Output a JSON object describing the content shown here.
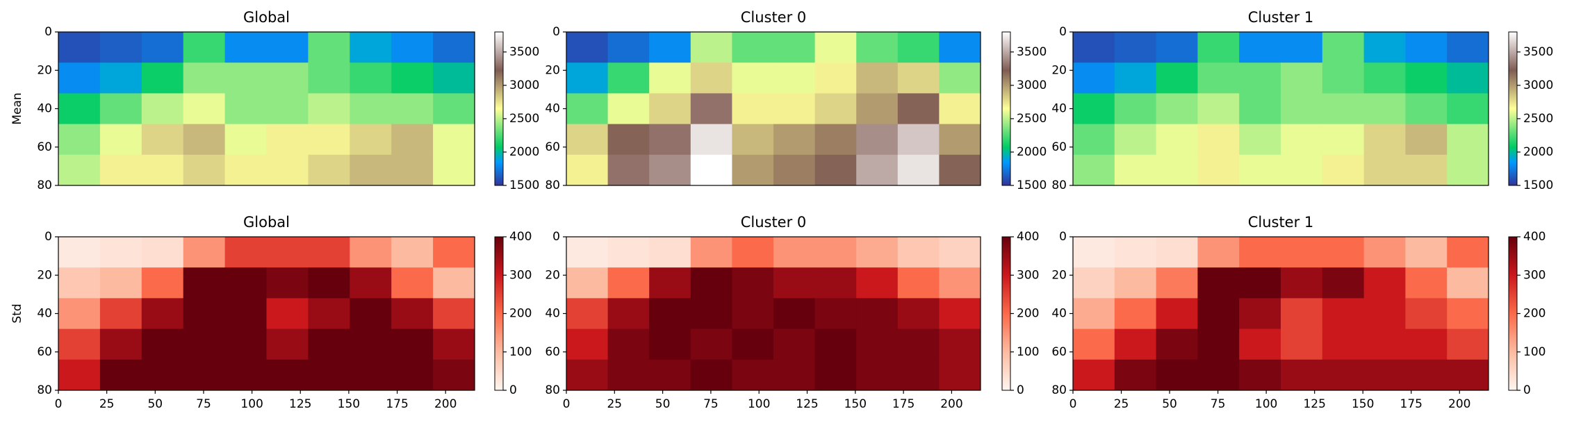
{
  "chart_data": [
    {
      "type": "heatmap",
      "title": "Global",
      "ylabel": "Mean",
      "colormap": "terrain",
      "xlim": [
        0,
        215
      ],
      "ylim": [
        80,
        0
      ],
      "yticks": [
        0,
        20,
        40,
        60,
        80
      ],
      "clim": [
        1500,
        3800
      ],
      "cticks": [
        1500,
        2000,
        2500,
        3000,
        3500
      ],
      "values": [
        [
          1600,
          1650,
          1700,
          2200,
          1800,
          1800,
          2300,
          1900,
          1800,
          1700
        ],
        [
          1800,
          1900,
          2100,
          2400,
          2400,
          2400,
          2300,
          2200,
          2100,
          2000
        ],
        [
          2100,
          2300,
          2500,
          2600,
          2400,
          2400,
          2500,
          2400,
          2400,
          2300
        ],
        [
          2400,
          2600,
          2800,
          2900,
          2600,
          2700,
          2700,
          2800,
          2900,
          2600
        ],
        [
          2500,
          2700,
          2700,
          2800,
          2700,
          2700,
          2800,
          2900,
          2900,
          2600
        ]
      ]
    },
    {
      "type": "heatmap",
      "title": "Cluster 0",
      "colormap": "terrain",
      "xlim": [
        0,
        215
      ],
      "ylim": [
        80,
        0
      ],
      "yticks": [
        0,
        20,
        40,
        60,
        80
      ],
      "clim": [
        1500,
        3800
      ],
      "cticks": [
        1500,
        2000,
        2500,
        3000,
        3500
      ],
      "values": [
        [
          1600,
          1700,
          1800,
          2500,
          2300,
          2300,
          2600,
          2300,
          2200,
          1800
        ],
        [
          1900,
          2200,
          2600,
          2800,
          2600,
          2600,
          2700,
          2900,
          2800,
          2400
        ],
        [
          2300,
          2600,
          2800,
          3300,
          2700,
          2700,
          2800,
          3000,
          3200,
          2700
        ],
        [
          2800,
          3200,
          3300,
          3700,
          2900,
          3000,
          3100,
          3400,
          3600,
          3000
        ],
        [
          2700,
          3300,
          3400,
          3800,
          3000,
          3100,
          3200,
          3500,
          3700,
          3200
        ]
      ]
    },
    {
      "type": "heatmap",
      "title": "Cluster 1",
      "colormap": "terrain",
      "xlim": [
        0,
        215
      ],
      "ylim": [
        80,
        0
      ],
      "yticks": [
        0,
        20,
        40,
        60,
        80
      ],
      "clim": [
        1500,
        3800
      ],
      "cticks": [
        1500,
        2000,
        2500,
        3000,
        3500
      ],
      "values": [
        [
          1600,
          1650,
          1700,
          2200,
          1800,
          1800,
          2300,
          1900,
          1800,
          1700
        ],
        [
          1800,
          1900,
          2100,
          2300,
          2300,
          2400,
          2300,
          2200,
          2100,
          2000
        ],
        [
          2100,
          2300,
          2400,
          2500,
          2300,
          2400,
          2400,
          2400,
          2300,
          2200
        ],
        [
          2300,
          2500,
          2600,
          2700,
          2500,
          2600,
          2600,
          2800,
          2900,
          2500
        ],
        [
          2400,
          2600,
          2600,
          2700,
          2600,
          2600,
          2700,
          2800,
          2800,
          2500
        ]
      ]
    },
    {
      "type": "heatmap",
      "title": "Global",
      "ylabel": "Std",
      "colormap": "Reds",
      "xlim": [
        0,
        215
      ],
      "ylim": [
        80,
        0
      ],
      "xticks": [
        0,
        25,
        50,
        75,
        100,
        125,
        150,
        175,
        200
      ],
      "yticks": [
        0,
        20,
        40,
        60,
        80
      ],
      "clim": [
        0,
        400
      ],
      "cticks": [
        0,
        100,
        200,
        300,
        400
      ],
      "values": [
        [
          20,
          30,
          40,
          150,
          250,
          250,
          250,
          150,
          100,
          200
        ],
        [
          80,
          100,
          200,
          400,
          400,
          380,
          400,
          350,
          200,
          100
        ],
        [
          150,
          250,
          350,
          400,
          400,
          300,
          350,
          400,
          350,
          250
        ],
        [
          250,
          350,
          400,
          400,
          400,
          350,
          400,
          400,
          400,
          350
        ],
        [
          300,
          400,
          400,
          400,
          400,
          400,
          400,
          400,
          400,
          380
        ]
      ]
    },
    {
      "type": "heatmap",
      "title": "Cluster 0",
      "colormap": "Reds",
      "xlim": [
        0,
        215
      ],
      "ylim": [
        80,
        0
      ],
      "xticks": [
        0,
        25,
        50,
        75,
        100,
        125,
        150,
        175,
        200
      ],
      "yticks": [
        0,
        20,
        40,
        60,
        80
      ],
      "clim": [
        0,
        400
      ],
      "cticks": [
        0,
        100,
        200,
        300,
        400
      ],
      "values": [
        [
          20,
          30,
          40,
          150,
          200,
          150,
          150,
          120,
          80,
          60
        ],
        [
          100,
          200,
          350,
          400,
          380,
          350,
          350,
          300,
          200,
          150
        ],
        [
          250,
          350,
          400,
          400,
          380,
          400,
          380,
          380,
          350,
          300
        ],
        [
          300,
          380,
          400,
          380,
          400,
          380,
          400,
          380,
          380,
          350
        ],
        [
          350,
          380,
          380,
          400,
          380,
          380,
          400,
          380,
          380,
          350
        ]
      ]
    },
    {
      "type": "heatmap",
      "title": "Cluster 1",
      "colormap": "Reds",
      "xlim": [
        0,
        215
      ],
      "ylim": [
        80,
        0
      ],
      "xticks": [
        0,
        25,
        50,
        75,
        100,
        125,
        150,
        175,
        200
      ],
      "yticks": [
        0,
        20,
        40,
        60,
        80
      ],
      "clim": [
        0,
        400
      ],
      "cticks": [
        0,
        100,
        200,
        300,
        400
      ],
      "values": [
        [
          20,
          30,
          40,
          150,
          200,
          200,
          200,
          150,
          100,
          200
        ],
        [
          60,
          100,
          180,
          400,
          400,
          350,
          380,
          300,
          200,
          100
        ],
        [
          120,
          200,
          300,
          400,
          350,
          250,
          300,
          300,
          250,
          200
        ],
        [
          200,
          300,
          380,
          400,
          300,
          250,
          300,
          300,
          300,
          250
        ],
        [
          300,
          380,
          400,
          400,
          380,
          350,
          350,
          350,
          350,
          350
        ]
      ]
    }
  ]
}
